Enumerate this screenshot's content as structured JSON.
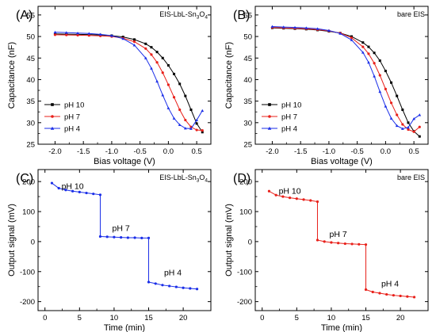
{
  "chart_data": [
    {
      "id": "A",
      "type": "line",
      "panel_label": "(A)",
      "annotation": "EIS-LbL-Sn",
      "annotation_sub": "3",
      "annotation_tail": "O",
      "annotation_sub2": "4",
      "xlabel": "Bias voltage (V)",
      "ylabel": "Capacitance (nF)",
      "xlim": [
        -2.3,
        0.75
      ],
      "ylim": [
        25,
        57
      ],
      "xticks": [
        -2.0,
        -1.5,
        -1.0,
        -0.5,
        0.0,
        0.5
      ],
      "xtick_labels": [
        "-2.0",
        "-1.5",
        "-1.0",
        "-0.5",
        "0.0",
        "0.5"
      ],
      "yticks": [
        25,
        30,
        35,
        40,
        45,
        50,
        55
      ],
      "ytick_labels": [
        "25",
        "30",
        "35",
        "40",
        "45",
        "50",
        "55"
      ],
      "legend_position": "lower-left",
      "series": [
        {
          "name": "pH 10",
          "color": "#000000",
          "marker": "square",
          "x": [
            -2.0,
            -1.8,
            -1.6,
            -1.4,
            -1.2,
            -1.0,
            -0.8,
            -0.6,
            -0.4,
            -0.3,
            -0.2,
            -0.1,
            0.0,
            0.1,
            0.2,
            0.3,
            0.4,
            0.5,
            0.6
          ],
          "y": [
            50.6,
            50.55,
            50.5,
            50.45,
            50.35,
            50.2,
            49.9,
            49.3,
            48.3,
            47.5,
            46.4,
            45.0,
            43.3,
            41.3,
            39.0,
            36.2,
            33.0,
            29.8,
            27.8
          ]
        },
        {
          "name": "pH 7",
          "color": "#e8201a",
          "marker": "circle",
          "x": [
            -2.0,
            -1.8,
            -1.6,
            -1.4,
            -1.2,
            -1.0,
            -0.8,
            -0.6,
            -0.4,
            -0.3,
            -0.2,
            -0.1,
            0.0,
            0.1,
            0.2,
            0.3,
            0.4,
            0.5,
            0.6
          ],
          "y": [
            50.4,
            50.35,
            50.3,
            50.25,
            50.15,
            50.0,
            49.6,
            48.8,
            47.2,
            45.8,
            44.0,
            41.6,
            38.8,
            35.9,
            33.0,
            30.6,
            29.0,
            28.3,
            28.2
          ]
        },
        {
          "name": "pH 4",
          "color": "#1a2ee8",
          "marker": "triangle",
          "x": [
            -2.0,
            -1.8,
            -1.6,
            -1.4,
            -1.2,
            -1.0,
            -0.8,
            -0.6,
            -0.4,
            -0.3,
            -0.2,
            -0.1,
            0.0,
            0.1,
            0.2,
            0.3,
            0.4,
            0.5,
            0.6
          ],
          "y": [
            51.0,
            50.9,
            50.8,
            50.7,
            50.5,
            50.2,
            49.5,
            48.0,
            45.0,
            42.6,
            39.6,
            36.4,
            33.4,
            31.0,
            29.5,
            28.7,
            28.6,
            30.6,
            32.8
          ]
        }
      ]
    },
    {
      "id": "B",
      "type": "line",
      "panel_label": "(B)",
      "annotation": "bare EIS",
      "xlabel": "Bias voltage (V)",
      "ylabel": "Capacitance (nF)",
      "xlim": [
        -2.3,
        0.75
      ],
      "ylim": [
        25,
        57
      ],
      "xticks": [
        -2.0,
        -1.5,
        -1.0,
        -0.5,
        0.0,
        0.5
      ],
      "xtick_labels": [
        "-2.0",
        "-1.5",
        "-1.0",
        "-0.5",
        "0.0",
        "0.5"
      ],
      "yticks": [
        25,
        30,
        35,
        40,
        45,
        50,
        55
      ],
      "ytick_labels": [
        "25",
        "30",
        "35",
        "40",
        "45",
        "50",
        "55"
      ],
      "legend_position": "lower-left",
      "series": [
        {
          "name": "pH 10",
          "color": "#000000",
          "marker": "square",
          "x": [
            -2.0,
            -1.8,
            -1.6,
            -1.4,
            -1.2,
            -1.0,
            -0.8,
            -0.6,
            -0.4,
            -0.3,
            -0.2,
            -0.1,
            0.0,
            0.1,
            0.2,
            0.3,
            0.4,
            0.5,
            0.6
          ],
          "y": [
            52.0,
            51.9,
            51.8,
            51.7,
            51.5,
            51.2,
            50.8,
            50.0,
            48.6,
            47.6,
            46.2,
            44.4,
            42.0,
            39.3,
            36.2,
            33.0,
            30.0,
            28.0,
            26.8
          ]
        },
        {
          "name": "pH 7",
          "color": "#e8201a",
          "marker": "circle",
          "x": [
            -2.0,
            -1.8,
            -1.6,
            -1.4,
            -1.2,
            -1.0,
            -0.8,
            -0.6,
            -0.4,
            -0.3,
            -0.2,
            -0.1,
            0.0,
            0.1,
            0.2,
            0.3,
            0.4,
            0.5,
            0.6
          ],
          "y": [
            52.1,
            52.0,
            51.9,
            51.8,
            51.6,
            51.3,
            50.8,
            49.7,
            47.6,
            46.0,
            43.8,
            41.0,
            37.8,
            34.6,
            31.8,
            29.6,
            28.4,
            27.9,
            29.0
          ]
        },
        {
          "name": "pH 4",
          "color": "#1a2ee8",
          "marker": "triangle",
          "x": [
            -2.0,
            -1.8,
            -1.6,
            -1.4,
            -1.2,
            -1.0,
            -0.8,
            -0.6,
            -0.4,
            -0.3,
            -0.2,
            -0.1,
            0.0,
            0.1,
            0.2,
            0.3,
            0.4,
            0.5,
            0.6
          ],
          "y": [
            52.3,
            52.2,
            52.1,
            52.0,
            51.8,
            51.4,
            50.7,
            49.2,
            46.3,
            44.0,
            40.8,
            37.2,
            33.8,
            31.0,
            29.3,
            28.6,
            28.9,
            30.9,
            31.8
          ]
        }
      ]
    },
    {
      "id": "C",
      "type": "line",
      "panel_label": "(C)",
      "annotation": "EIS-LbL-Sn",
      "annotation_sub": "3",
      "annotation_tail": "O",
      "annotation_sub2": "4",
      "xlabel": "Time (min)",
      "ylabel": "Output signal (mV)",
      "xlim": [
        -1,
        24
      ],
      "ylim": [
        -230,
        240
      ],
      "xticks": [
        0,
        5,
        10,
        15,
        20
      ],
      "xtick_labels": [
        "0",
        "5",
        "10",
        "15",
        "20"
      ],
      "yticks": [
        -200,
        -100,
        0,
        100,
        200
      ],
      "ytick_labels": [
        "-200",
        "-100",
        "0",
        "100",
        "200"
      ],
      "segment_labels": [
        {
          "text": "pH 10",
          "x": 4.0,
          "y": 175
        },
        {
          "text": "pH 7",
          "x": 11.0,
          "y": 35
        },
        {
          "text": "pH 4",
          "x": 18.5,
          "y": -112
        }
      ],
      "series": [
        {
          "name": "",
          "color": "#1a2ee8",
          "marker": "circle",
          "x": [
            1,
            2,
            3,
            4,
            5,
            6,
            7,
            8,
            8,
            9,
            10,
            11,
            12,
            13,
            14,
            15,
            15,
            16,
            17,
            18,
            19,
            20,
            21,
            22
          ],
          "y": [
            195,
            178,
            172,
            168,
            165,
            162,
            159,
            156,
            17,
            16,
            15,
            14,
            13,
            13,
            12,
            12,
            -135,
            -140,
            -145,
            -148,
            -151,
            -154,
            -156,
            -158
          ]
        }
      ]
    },
    {
      "id": "D",
      "type": "line",
      "panel_label": "(D)",
      "annotation": "bare EIS",
      "xlabel": "Time (min)",
      "ylabel": "Output signal (mV)",
      "xlim": [
        -1,
        24
      ],
      "ylim": [
        -230,
        240
      ],
      "xticks": [
        0,
        5,
        10,
        15,
        20
      ],
      "xtick_labels": [
        "0",
        "5",
        "10",
        "15",
        "20"
      ],
      "yticks": [
        -200,
        -100,
        0,
        100,
        200
      ],
      "ytick_labels": [
        "-200",
        "-100",
        "0",
        "100",
        "200"
      ],
      "segment_labels": [
        {
          "text": "pH 10",
          "x": 4.0,
          "y": 160
        },
        {
          "text": "pH 7",
          "x": 11.0,
          "y": 16
        },
        {
          "text": "pH 4",
          "x": 18.5,
          "y": -150
        }
      ],
      "series": [
        {
          "name": "",
          "color": "#e8201a",
          "marker": "circle",
          "x": [
            1,
            2,
            3,
            4,
            5,
            6,
            7,
            8,
            8,
            9,
            10,
            11,
            12,
            13,
            14,
            15,
            15,
            16,
            17,
            18,
            19,
            20,
            21,
            22
          ],
          "y": [
            168,
            155,
            150,
            146,
            143,
            140,
            137,
            133,
            5,
            0,
            -3,
            -5,
            -7,
            -8,
            -9,
            -10,
            -160,
            -168,
            -172,
            -176,
            -179,
            -181,
            -183,
            -185
          ]
        }
      ]
    }
  ]
}
